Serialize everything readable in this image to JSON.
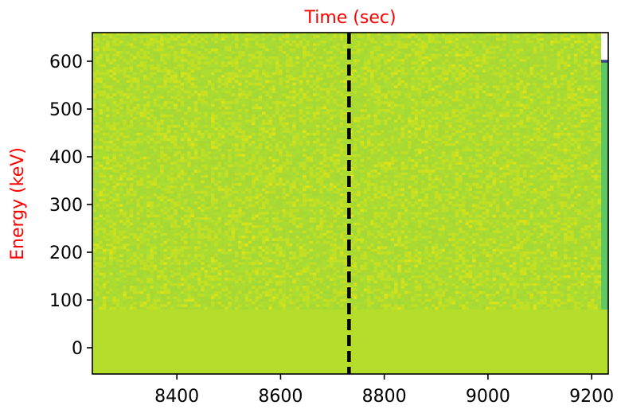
{
  "chart_data": {
    "type": "heatmap",
    "title": "",
    "xlabel": "Time (sec)",
    "ylabel": "Energy (keV)",
    "label_color": "#ff0000",
    "xlim": [
      8237,
      9232
    ],
    "ylim": [
      -55,
      660
    ],
    "xticks": [
      8400,
      8600,
      8800,
      9000,
      9200
    ],
    "yticks": [
      0,
      100,
      200,
      300,
      400,
      500,
      600
    ],
    "xtick_labels": [
      "8400",
      "8600",
      "8800",
      "9000",
      "9200"
    ],
    "ytick_labels": [
      "0",
      "100",
      "200",
      "300",
      "400",
      "500",
      "600"
    ],
    "vertical_line": {
      "x": 8732,
      "style": "dashed",
      "color": "#000000"
    },
    "regions": [
      {
        "x": [
          8237,
          9232
        ],
        "y": [
          -55,
          80
        ],
        "fill": "#b5dd2b",
        "description": "uniform band"
      },
      {
        "x": [
          8237,
          9218
        ],
        "y": [
          80,
          660
        ],
        "fill": "#aad732",
        "description": "noisy high-value region"
      },
      {
        "x": [
          9218,
          9232
        ],
        "y": [
          80,
          600
        ],
        "fill": "#5ec962",
        "description": "edge strip"
      },
      {
        "x": [
          9218,
          9232
        ],
        "y": [
          597,
          603
        ],
        "fill": "#3e4989",
        "description": "edge top line"
      }
    ],
    "colormap": [
      "#a0da39",
      "#aadc32",
      "#b5de2b",
      "#bfdf25",
      "#c8e020",
      "#d2e21b",
      "#dde318"
    ],
    "grid": false,
    "legend": "none"
  }
}
